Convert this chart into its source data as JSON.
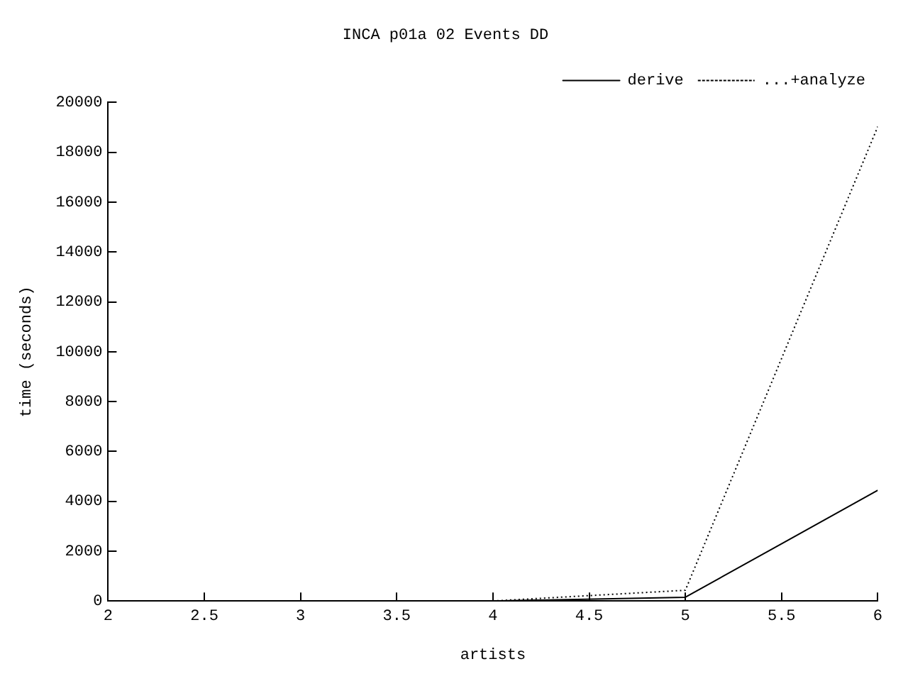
{
  "chart_data": {
    "type": "line",
    "title": "INCA p01a 02 Events DD",
    "xlabel": "artists",
    "ylabel": "time (seconds)",
    "x": [
      4,
      5,
      6
    ],
    "series": [
      {
        "name": "derive",
        "color": "#000000",
        "values": [
          0,
          150,
          4440
        ],
        "line_style": "solid"
      },
      {
        "name": "...+analyze",
        "color": "#000000",
        "values": [
          0,
          430,
          19030
        ],
        "line_style": "dotted"
      }
    ],
    "xlim": [
      2,
      6
    ],
    "xticks": [
      2,
      2.5,
      3,
      3.5,
      4,
      4.5,
      5,
      5.5,
      6
    ],
    "ylim": [
      0,
      20000
    ],
    "yticks": [
      0,
      2000,
      4000,
      6000,
      8000,
      10000,
      12000,
      14000,
      16000,
      18000,
      20000
    ],
    "grid": false,
    "legend": "top right",
    "marker": "none"
  }
}
